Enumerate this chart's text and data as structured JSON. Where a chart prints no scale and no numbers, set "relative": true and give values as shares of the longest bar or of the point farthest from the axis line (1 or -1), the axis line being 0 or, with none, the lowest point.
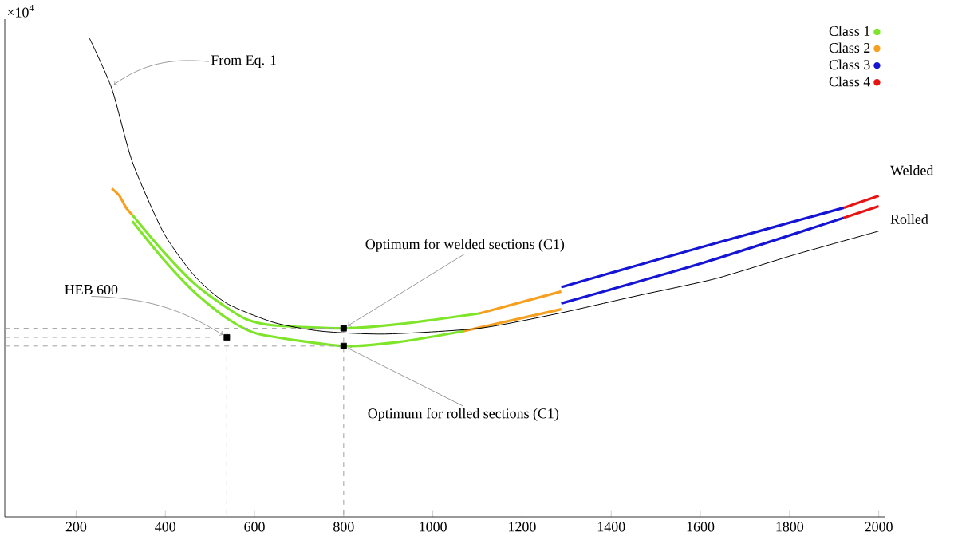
{
  "chart_data": {
    "type": "line",
    "relative": true,
    "xlim": [
      40,
      2015
    ],
    "xticks": [
      200,
      400,
      600,
      800,
      1000,
      1200,
      1400,
      1600,
      1800,
      2000
    ],
    "legend": "top right",
    "series": [
      {
        "name": "Class 1",
        "color": "#7fe52a",
        "x": [
          326,
          396,
          467,
          538,
          584,
          644,
          800,
          927,
          1104
        ],
        "values": [
          0.631,
          0.554,
          0.486,
          0.437,
          0.412,
          0.4,
          0.394,
          0.403,
          0.425
        ]
      },
      {
        "name": "Class 2",
        "color": "#f5a020",
        "x": [
          280,
          297,
          312,
          326
        ],
        "values": [
          0.686,
          0.671,
          0.646,
          0.631
        ]
      },
      {
        "name": "Class 3",
        "color": "#1414d2",
        "x": [
          1288,
          1600,
          1922
        ],
        "values": [
          0.48,
          0.563,
          0.646
        ]
      },
      {
        "name": "Class 4",
        "color": "#e81414",
        "x": [
          1922,
          2000
        ],
        "values": [
          0.646,
          0.671
        ]
      },
      {
        "color": "#7fe52a",
        "x": [
          326,
          396,
          467,
          538,
          609,
          800,
          927,
          1068
        ],
        "values": [
          0.618,
          0.538,
          0.468,
          0.415,
          0.382,
          0.357,
          0.366,
          0.388
        ]
      },
      {
        "color": "#f5a020",
        "x": [
          1104,
          1288
        ],
        "values": [
          0.425,
          0.471
        ]
      },
      {
        "color": "#f5a020",
        "x": [
          1068,
          1288
        ],
        "values": [
          0.388,
          0.434
        ]
      },
      {
        "color": "#1414d2",
        "x": [
          1288,
          1600,
          1922
        ],
        "values": [
          0.446,
          0.529,
          0.625
        ]
      },
      {
        "color": "#e81414",
        "x": [
          1922,
          2000
        ],
        "values": [
          0.625,
          0.649
        ]
      },
      {
        "color": "#000000",
        "x": [
          230,
          280,
          326,
          396,
          467,
          538,
          644,
          750,
          892,
          1104,
          1281,
          1458,
          1635,
          1812,
          2000
        ],
        "values": [
          1.0,
          0.895,
          0.742,
          0.594,
          0.502,
          0.446,
          0.406,
          0.388,
          0.382,
          0.394,
          0.425,
          0.462,
          0.498,
          0.548,
          0.597
        ]
      },
      {
        "type": "line",
        "line_style": "dashed",
        "color": "#a0a0a0",
        "x": [
          40,
          800
        ],
        "values": [
          0.394,
          0.394
        ]
      },
      {
        "type": "line",
        "line_style": "dashed",
        "color": "#a0a0a0",
        "x": [
          40,
          800
        ],
        "values": [
          0.357,
          0.357
        ]
      },
      {
        "type": "line",
        "line_style": "dashed",
        "color": "#a0a0a0",
        "x": [
          40,
          503
        ],
        "values": [
          0.375,
          0.375
        ]
      },
      {
        "type": "line",
        "line_style": "dashed",
        "color": "#a0a0a0",
        "x": [
          538,
          538
        ],
        "values": [
          0.375,
          0
        ]
      },
      {
        "type": "line",
        "line_style": "dashed",
        "color": "#a0a0a0",
        "x": [
          800,
          800
        ],
        "values": [
          0.394,
          0
        ]
      },
      {
        "type": "scatter",
        "marker": "square",
        "color": "#000000",
        "x": [
          538,
          800,
          800
        ],
        "values": [
          0.375,
          0.394,
          0.357
        ]
      }
    ],
    "annotations": [
      "×10$^{4}$",
      {
        "text": "From Eq. 1",
        "x": 276,
        "y": 0.898
      },
      {
        "text": "Optimum for welded sections (C1)",
        "x": 800,
        "y": 0.394
      },
      {
        "text": "Optimum for rolled sections (C1)",
        "x": 800,
        "y": 0.357
      },
      {
        "text": "HEB 600",
        "x": 538,
        "y": 0.375
      },
      {
        "text": "Welded",
        "x": 2000,
        "y": 0.671
      },
      {
        "text": "Rolled",
        "x": 2000,
        "y": 0.649
      }
    ]
  }
}
